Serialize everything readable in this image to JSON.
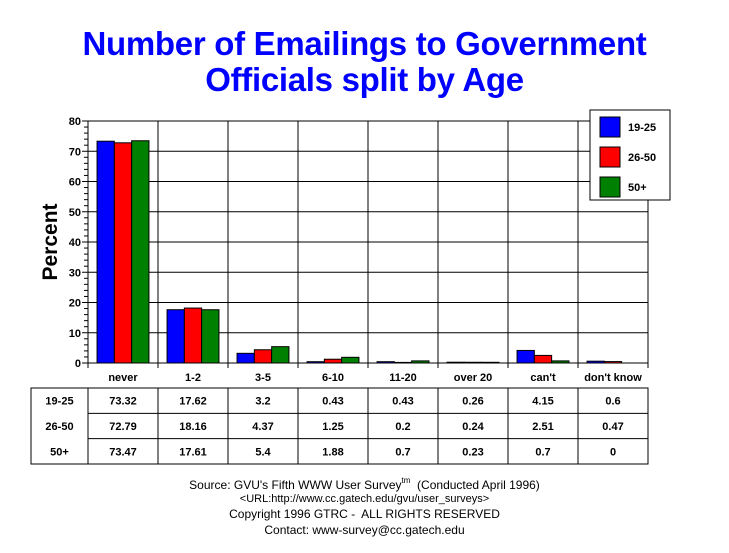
{
  "chart_data": {
    "type": "bar",
    "title": "Number of Emailings to Government Officials split by Age",
    "title_lines": [
      "Number of Emailings to Government",
      "Officials split by Age"
    ],
    "xlabel": "",
    "ylabel": "Percent",
    "ylim": [
      0,
      80
    ],
    "yticks": [
      0,
      10,
      20,
      30,
      40,
      50,
      60,
      70,
      80
    ],
    "grid": true,
    "legend_position": "top-right",
    "categories": [
      "never",
      "1-2",
      "3-5",
      "6-10",
      "11-20",
      "over 20",
      "can't",
      "don't know"
    ],
    "series": [
      {
        "name": "19-25",
        "color": "#0000ff",
        "values": [
          73.32,
          17.62,
          3.2,
          0.43,
          0.43,
          0.26,
          4.15,
          0.6
        ]
      },
      {
        "name": "26-50",
        "color": "#ff0000",
        "values": [
          72.79,
          18.16,
          4.37,
          1.25,
          0.2,
          0.24,
          2.51,
          0.47
        ]
      },
      {
        "name": "50+",
        "color": "#008000",
        "values": [
          73.47,
          17.61,
          5.4,
          1.88,
          0.7,
          0.23,
          0.7,
          0
        ]
      }
    ],
    "table": {
      "rows": [
        {
          "label": "19-25",
          "cells": [
            "73.32",
            "17.62",
            "3.2",
            "0.43",
            "0.43",
            "0.26",
            "4.15",
            "0.6"
          ]
        },
        {
          "label": "26-50",
          "cells": [
            "72.79",
            "18.16",
            "4.37",
            "1.25",
            "0.2",
            "0.24",
            "2.51",
            "0.47"
          ]
        },
        {
          "label": "50+",
          "cells": [
            "73.47",
            "17.61",
            "5.4",
            "1.88",
            "0.7",
            "0.23",
            "0.7",
            "0"
          ]
        }
      ]
    }
  },
  "footer": {
    "source_prefix": "Source: GVU's Fifth WWW User Survey",
    "source_tm": "tm",
    "source_suffix": "  (Conducted April 1996)",
    "url": "<URL:http://www.cc.gatech.edu/gvu/user_surveys>",
    "copyright": "Copyright 1996 GTRC -  ALL RIGHTS RESERVED",
    "contact": "Contact: www-survey@cc.gatech.edu"
  }
}
